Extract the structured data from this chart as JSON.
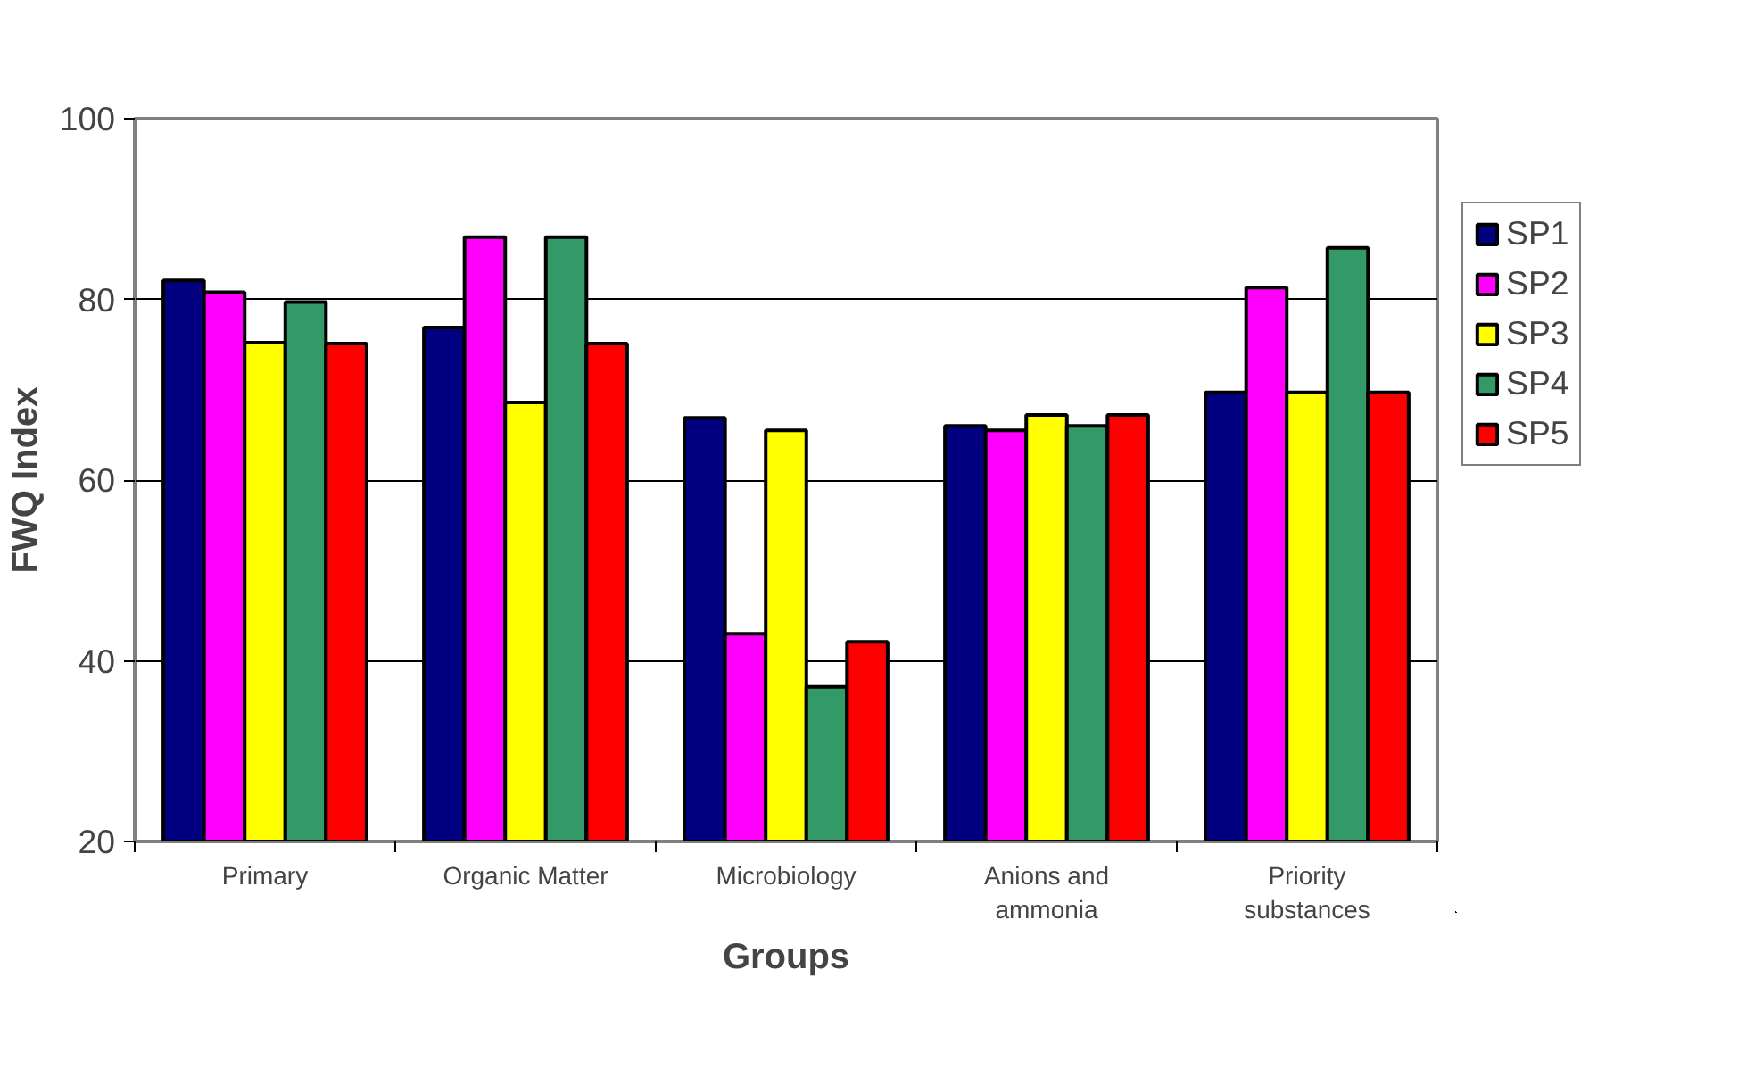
{
  "chart_data": {
    "type": "bar",
    "xlabel": "Groups",
    "ylabel": "FWQ Index",
    "categories": [
      "Primary",
      "Organic Matter",
      "Microbiology",
      "Anions and ammonia",
      "Priority substances"
    ],
    "series": [
      {
        "name": "SP1",
        "color": "#000080",
        "values": [
          82.1,
          76.9,
          66.9,
          66.0,
          69.7
        ]
      },
      {
        "name": "SP2",
        "color": "#ff00ff",
        "values": [
          80.8,
          86.9,
          43.0,
          65.5,
          81.3
        ]
      },
      {
        "name": "SP3",
        "color": "#ffff00",
        "values": [
          75.2,
          68.6,
          65.5,
          67.2,
          69.7
        ]
      },
      {
        "name": "SP4",
        "color": "#339966",
        "values": [
          79.7,
          86.9,
          37.1,
          66.0,
          85.7
        ]
      },
      {
        "name": "SP5",
        "color": "#ff0000",
        "values": [
          75.1,
          75.1,
          42.1,
          67.2,
          69.7
        ]
      }
    ],
    "ylim": [
      20,
      100
    ],
    "yticks": [
      20,
      40,
      60,
      80,
      100
    ],
    "grid": "y",
    "legend": "right"
  }
}
